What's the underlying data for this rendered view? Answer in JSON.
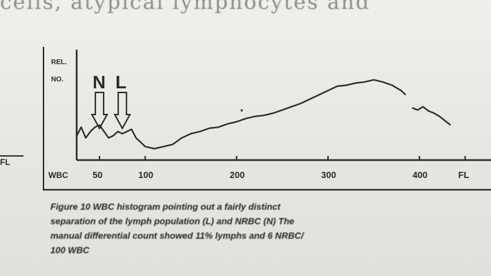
{
  "page": {
    "top_text": "cells, atypical lymphocytes and",
    "margin_label": "FL"
  },
  "chart_data": {
    "type": "line",
    "ylabel": "REL. NO.",
    "xlabel": "WBC",
    "x_ticks": [
      "50",
      "100",
      "200",
      "300",
      "400",
      "FL"
    ],
    "xlim": [
      25,
      470
    ],
    "ylim": [
      0,
      100
    ],
    "annotations": [
      {
        "label": "N",
        "x": 50
      },
      {
        "label": "L",
        "x": 75
      }
    ],
    "series": [
      {
        "x": [
          25,
          30,
          35,
          40,
          45,
          50,
          55,
          60,
          65,
          70,
          75,
          80,
          85,
          90,
          95,
          100,
          110,
          120,
          130,
          140,
          150,
          160,
          170,
          180,
          190,
          200,
          210,
          220,
          230,
          240,
          250,
          260,
          270,
          280,
          290,
          300,
          310,
          320,
          330,
          340,
          350,
          360,
          370,
          380,
          385
        ],
        "y": [
          20,
          28,
          18,
          24,
          28,
          30,
          24,
          18,
          20,
          24,
          22,
          24,
          26,
          18,
          14,
          10,
          8,
          10,
          12,
          18,
          22,
          24,
          27,
          28,
          31,
          33,
          36,
          38,
          39,
          41,
          44,
          47,
          50,
          54,
          58,
          62,
          66,
          67,
          69,
          70,
          72,
          70,
          67,
          62,
          58
        ]
      },
      {
        "x": [
          392,
          398,
          404,
          410,
          416,
          422,
          428,
          434
        ],
        "y": [
          46,
          44,
          47,
          43,
          41,
          38,
          34,
          30
        ]
      }
    ]
  },
  "caption": {
    "lines": [
      "Figure 10   WBC histogram pointing out a fairly distinct",
      "separation of the lymph population (L) and NRBC (N) The",
      "manual differential count showed 11% lymphs and 6 NRBC/",
      "100 WBC"
    ]
  }
}
